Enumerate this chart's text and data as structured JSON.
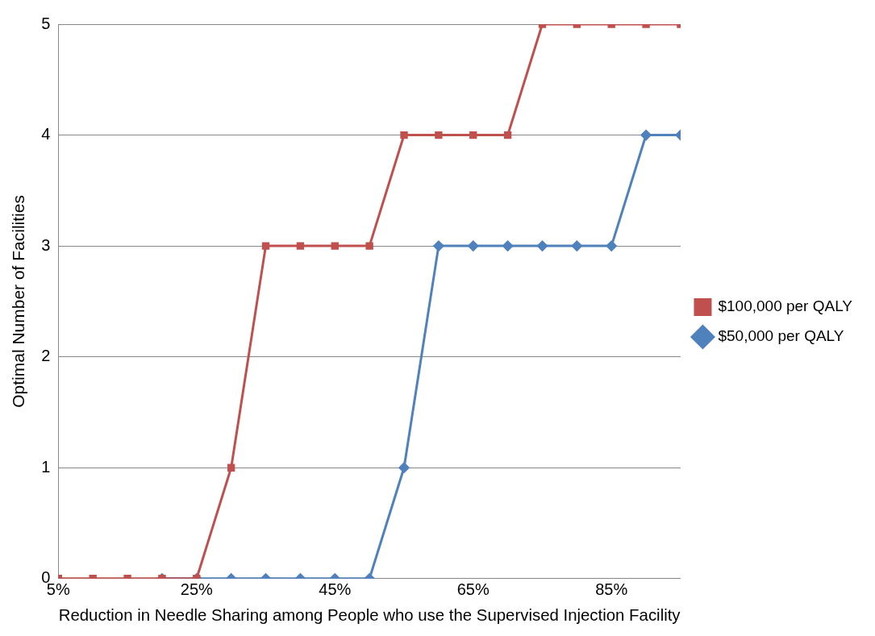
{
  "chart_data": {
    "type": "line",
    "xlabel": "Reduction in Needle Sharing among People who use the Supervised Injection Facility",
    "ylabel": "Optimal Number of Facilities",
    "x": [
      5,
      10,
      15,
      20,
      25,
      30,
      35,
      40,
      45,
      50,
      55,
      60,
      65,
      70,
      75,
      80,
      85,
      90,
      95
    ],
    "series": [
      {
        "name": "$100,000 per QALY",
        "color": "#c0504d",
        "marker": "square",
        "values": [
          0,
          0,
          0,
          0,
          0,
          1,
          3,
          3,
          3,
          3,
          4,
          4,
          4,
          4,
          5,
          5,
          5,
          5,
          5
        ]
      },
      {
        "name": "$50,000 per QALY",
        "color": "#4f81bd",
        "marker": "diamond",
        "values": [
          null,
          null,
          null,
          0,
          0,
          0,
          0,
          0,
          0,
          0,
          1,
          3,
          3,
          3,
          3,
          3,
          3,
          4,
          4
        ]
      }
    ],
    "xlim": [
      5,
      95
    ],
    "xticks": [
      {
        "value": 5,
        "label": "5%"
      },
      {
        "value": 25,
        "label": "25%"
      },
      {
        "value": 45,
        "label": "45%"
      },
      {
        "value": 65,
        "label": "65%"
      },
      {
        "value": 85,
        "label": "85%"
      }
    ],
    "ylim": [
      0,
      5
    ],
    "yticks": [
      0,
      1,
      2,
      3,
      4,
      5
    ],
    "grid": "y",
    "legend": "right",
    "line_style": "solid"
  }
}
